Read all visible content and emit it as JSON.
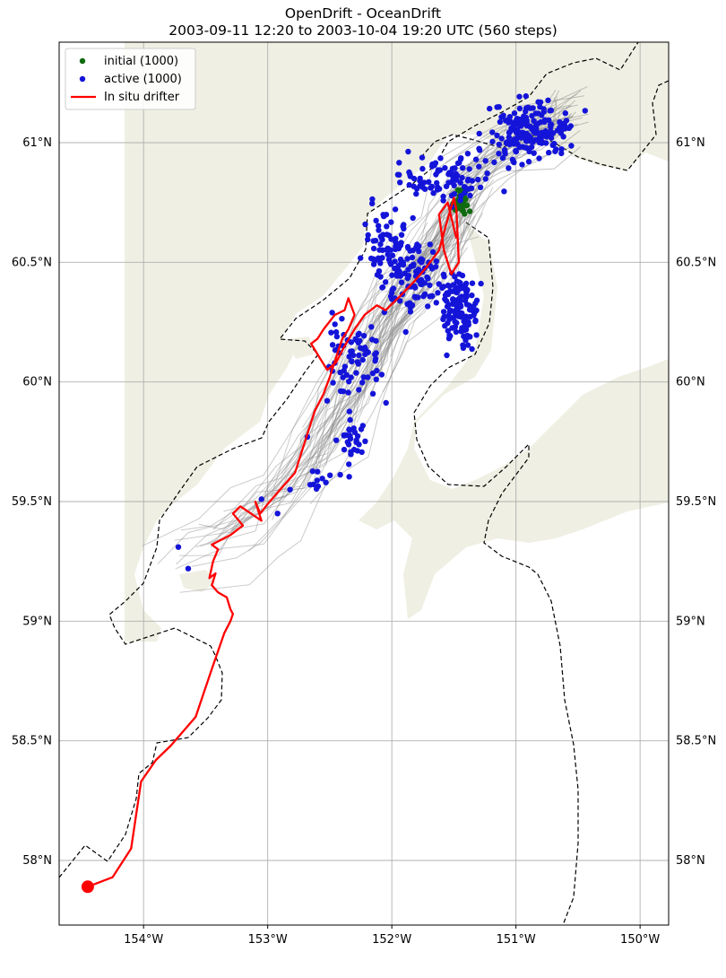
{
  "title": {
    "line1": "OpenDrift - OceanDrift",
    "line2": "2003-09-11 12:20 to 2003-10-04 19:20 UTC (560 steps)"
  },
  "axes": {
    "lon_ticks": [
      "154°W",
      "153°W",
      "152°W",
      "151°W",
      "150°W"
    ],
    "lat_ticks": [
      "61°N",
      "60.5°N",
      "60°N",
      "59.5°N",
      "59°N",
      "58.5°N",
      "58°N"
    ],
    "lon_values": [
      -154,
      -153,
      -152,
      -151,
      -150
    ],
    "lat_values": [
      61,
      60.5,
      60,
      59.5,
      59,
      58.5,
      58
    ],
    "lon_range": [
      -154.68,
      -149.77
    ],
    "lat_range": [
      57.73,
      61.42
    ],
    "grid": true
  },
  "colors": {
    "land": "#efefe3",
    "ocean": "#ffffff",
    "trajectories": "#8c8c8c",
    "initial": "#0f6b0f",
    "active": "#1414d9",
    "drifter": "#ff0000",
    "grid": "#b0b0b0"
  },
  "legend": {
    "position": "top-left",
    "items": [
      {
        "label": "initial (1000)",
        "marker": "dot",
        "color": "#0f6b0f"
      },
      {
        "label": "active (1000)",
        "marker": "dot",
        "color": "#1414d9"
      },
      {
        "label": "In situ drifter",
        "marker": "line",
        "color": "#ff0000"
      }
    ]
  },
  "chart_data": {
    "type": "scatter",
    "title": "OpenDrift - OceanDrift\n2003-09-11 12:20 to 2003-10-04 19:20 UTC (560 steps)",
    "xlabel": "",
    "ylabel": "",
    "series": [
      {
        "name": "In situ drifter",
        "kind": "line",
        "lon": [
          -154.45,
          -154.25,
          -154.1,
          -154.02,
          -153.9,
          -153.78,
          -153.58,
          -153.45,
          -153.35,
          -153.3,
          -153.28,
          -153.3,
          -153.33,
          -153.4,
          -153.45,
          -153.42,
          -153.47,
          -153.44,
          -153.4,
          -153.45,
          -153.3,
          -153.2,
          -153.28,
          -153.22,
          -153.05,
          -153.1,
          -153.06,
          -153.0,
          -152.9,
          -152.78,
          -152.7,
          -152.62,
          -152.55,
          -152.5,
          -152.45,
          -152.4,
          -152.35,
          -152.3,
          -152.35,
          -152.38,
          -152.46,
          -152.55,
          -152.6,
          -152.65,
          -152.58,
          -152.52,
          -152.45,
          -152.38,
          -152.3,
          -152.22,
          -152.12,
          -152.05,
          -151.95,
          -151.82,
          -151.72,
          -151.62,
          -151.55,
          -151.5,
          -151.48,
          -151.46,
          -151.52,
          -151.58,
          -151.62,
          -151.55,
          -151.48
        ],
        "lat": [
          57.89,
          57.93,
          58.05,
          58.33,
          58.42,
          58.48,
          58.6,
          58.8,
          58.95,
          59.0,
          59.03,
          59.05,
          59.1,
          59.12,
          59.15,
          59.2,
          59.18,
          59.25,
          59.3,
          59.32,
          59.36,
          59.4,
          59.45,
          59.48,
          59.42,
          59.5,
          59.45,
          59.49,
          59.55,
          59.62,
          59.75,
          59.88,
          59.95,
          60.02,
          60.1,
          60.18,
          60.22,
          60.28,
          60.35,
          60.3,
          60.28,
          60.22,
          60.18,
          60.16,
          60.1,
          60.05,
          60.08,
          60.15,
          60.22,
          60.28,
          60.32,
          60.3,
          60.35,
          60.42,
          60.48,
          60.55,
          60.68,
          60.77,
          60.72,
          60.5,
          60.45,
          60.55,
          60.7,
          60.75,
          60.6
        ]
      },
      {
        "name": "initial (1000)",
        "kind": "points",
        "center_lon": -151.44,
        "center_lat": 60.76,
        "count": 1000
      },
      {
        "name": "active (1000)",
        "kind": "points",
        "count": 1000,
        "clusters": [
          {
            "lon": -150.9,
            "lat": 61.05,
            "spread_lon": 0.28,
            "spread_lat": 0.1,
            "n": 180
          },
          {
            "lon": -151.55,
            "lat": 60.85,
            "spread_lon": 0.3,
            "spread_lat": 0.08,
            "n": 90
          },
          {
            "lon": -151.45,
            "lat": 60.3,
            "spread_lon": 0.12,
            "spread_lat": 0.12,
            "n": 120
          },
          {
            "lon": -151.85,
            "lat": 60.45,
            "spread_lon": 0.22,
            "spread_lat": 0.15,
            "n": 110
          },
          {
            "lon": -152.05,
            "lat": 60.6,
            "spread_lon": 0.15,
            "spread_lat": 0.1,
            "n": 50
          },
          {
            "lon": -152.3,
            "lat": 60.1,
            "spread_lon": 0.2,
            "spread_lat": 0.15,
            "n": 70
          },
          {
            "lon": -152.3,
            "lat": 59.75,
            "spread_lon": 0.1,
            "spread_lat": 0.15,
            "n": 30
          },
          {
            "lon": -152.6,
            "lat": 59.58,
            "spread_lon": 0.08,
            "spread_lat": 0.05,
            "n": 10
          }
        ],
        "outliers": [
          {
            "lon": -153.72,
            "lat": 59.31
          },
          {
            "lon": -153.64,
            "lat": 59.22
          },
          {
            "lon": -152.92,
            "lat": 59.45
          },
          {
            "lon": -153.05,
            "lat": 59.51
          },
          {
            "lon": -152.82,
            "lat": 59.55
          },
          {
            "lon": -152.68,
            "lat": 59.77
          }
        ]
      }
    ],
    "drifter_end": {
      "lon": -154.45,
      "lat": 57.89
    },
    "xlim": [
      -154.68,
      -149.77
    ],
    "ylim": [
      57.73,
      61.42
    ]
  }
}
